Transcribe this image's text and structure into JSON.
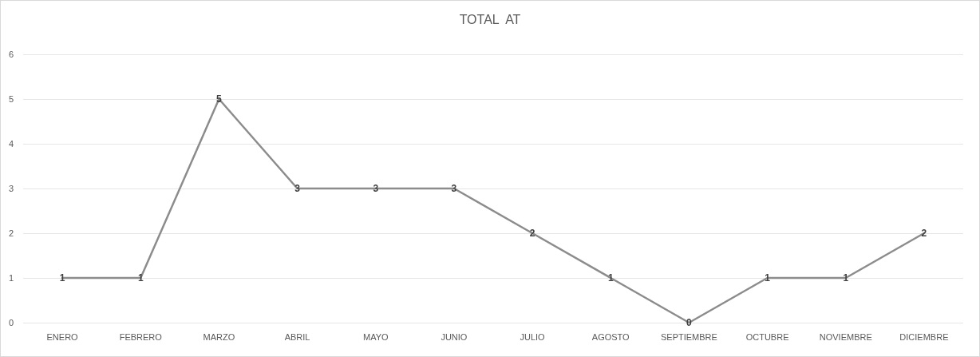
{
  "chart_data": {
    "type": "line",
    "title": "TOTAL  AT",
    "categories": [
      "ENERO",
      "FEBRERO",
      "MARZO",
      "ABRIL",
      "MAYO",
      "JUNIO",
      "JULIO",
      "AGOSTO",
      "SEPTIEMBRE",
      "OCTUBRE",
      "NOVIEMBRE",
      "DICIEMBRE"
    ],
    "series": [
      {
        "color": "#8c8c8c",
        "values": [
          1,
          1,
          5,
          3,
          3,
          3,
          2,
          1,
          0,
          1,
          1,
          2
        ]
      }
    ],
    "ylim": [
      0,
      6
    ],
    "yticks": [
      0,
      1,
      2,
      3,
      4,
      5,
      6
    ],
    "grid": "y",
    "data_labels": true,
    "marker": "none",
    "line_style": "solid"
  }
}
